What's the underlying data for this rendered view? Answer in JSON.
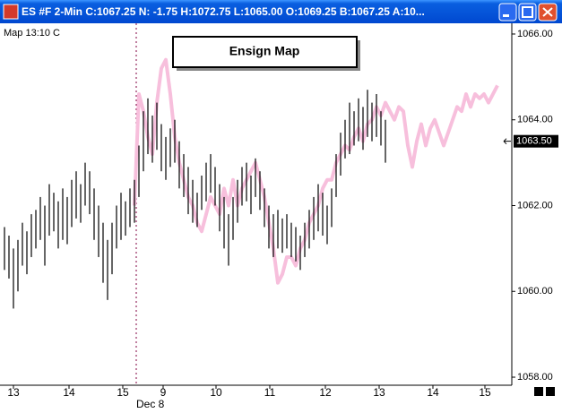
{
  "window": {
    "title": "ES #F 2-Min C:1067.25 N: -1.75 H:1072.75 L:1065.00 O:1069.25 B:1067.25 A:10..."
  },
  "chart_data": {
    "type": "ohlc",
    "caption": "Map 13:10 C",
    "annotation": "Ensign Map",
    "color": "#000000",
    "high": [
      1061.5,
      1061.3,
      1061,
      1061.2,
      1061.6,
      1061.4,
      1061.8,
      1061.9,
      1062.2,
      1062,
      1062.5,
      1062.3,
      1062.1,
      1062.4,
      1062.2,
      1062.6,
      1062.8,
      1062.5,
      1063,
      1062.8,
      1062.4,
      1062,
      1061.6,
      1061.2,
      1061.6,
      1062,
      1062.3,
      1062.1,
      1062.4,
      1062.6,
      1063.4,
      1064.2,
      1064.5,
      1064.1,
      1064.4,
      1063.9,
      1063.6,
      1063.8,
      1064,
      1063.5,
      1063.2,
      1062.9,
      1062.6,
      1062.3,
      1062.7,
      1063,
      1063.2,
      1062.9,
      1062.5,
      1062.2,
      1061.8,
      1062.2,
      1062.6,
      1062.9,
      1063,
      1062.7,
      1063.1,
      1062.8,
      1062.4,
      1062,
      1061.8,
      1061.9,
      1061.7,
      1061.8,
      1061.6,
      1061.5,
      1061.3,
      1061.6,
      1061.9,
      1062.2,
      1062.5,
      1062.3,
      1062,
      1062.4,
      1063.2,
      1063.7,
      1064,
      1064.4,
      1064.2,
      1064.5,
      1064.3,
      1064.7,
      1064.4,
      1064.6,
      1064.2,
      1064
    ],
    "low": [
      1060.5,
      1060.3,
      1059.6,
      1060,
      1060.6,
      1060.4,
      1060.8,
      1061,
      1061.2,
      1060.6,
      1061.3,
      1061.4,
      1061,
      1061.2,
      1061.1,
      1061.5,
      1061.7,
      1061.6,
      1062,
      1061.8,
      1061.2,
      1060.8,
      1060.2,
      1059.8,
      1060.4,
      1061,
      1061.2,
      1061.3,
      1061.5,
      1061.6,
      1062.2,
      1062.8,
      1063.2,
      1063,
      1063.3,
      1062.8,
      1062.6,
      1062.9,
      1063,
      1062.4,
      1062.2,
      1061.8,
      1061.6,
      1061.5,
      1061.9,
      1062.1,
      1062.3,
      1062,
      1061.4,
      1061,
      1060.6,
      1061.2,
      1061.6,
      1062,
      1062.1,
      1061.8,
      1062.2,
      1061.9,
      1061.5,
      1061,
      1060.8,
      1061,
      1060.9,
      1061,
      1060.8,
      1060.7,
      1060.5,
      1060.8,
      1061,
      1061.2,
      1061.4,
      1061.3,
      1061.1,
      1061.5,
      1062.2,
      1062.7,
      1063.1,
      1063.2,
      1063.4,
      1063.5,
      1063.3,
      1063.6,
      1063.5,
      1063.6,
      1063.4,
      1063
    ],
    "series": [
      {
        "color": "#f7bfdc",
        "x": [
          29,
          30,
          31,
          32,
          33,
          34,
          35,
          36,
          37,
          38,
          39,
          40,
          41,
          42,
          43,
          44,
          45,
          46,
          47,
          48,
          49,
          50,
          51,
          52,
          53,
          54,
          55,
          56,
          57,
          58,
          59,
          60,
          61,
          62,
          63,
          64,
          65,
          66,
          67,
          68,
          69,
          70,
          71,
          72,
          73,
          74,
          75,
          76,
          77,
          78,
          79,
          80,
          81,
          82,
          83,
          84,
          85,
          86,
          87,
          88,
          89,
          90,
          91,
          92,
          93,
          94,
          95,
          96,
          97,
          98,
          99,
          100,
          101,
          102,
          103,
          104,
          105,
          106,
          107,
          108,
          109,
          110
        ],
        "values": [
          1062,
          1064.6,
          1064.2,
          1063.6,
          1063.2,
          1064.4,
          1065.2,
          1065.4,
          1064.6,
          1063.6,
          1063,
          1062.6,
          1062.2,
          1062,
          1061.6,
          1061.4,
          1061.8,
          1062.2,
          1062,
          1061.8,
          1062.4,
          1062,
          1062.6,
          1062,
          1062.4,
          1062.6,
          1062.8,
          1063,
          1062.6,
          1062.2,
          1061.6,
          1061,
          1060.2,
          1060.4,
          1060.8,
          1060.8,
          1060.6,
          1061,
          1061.2,
          1061.6,
          1061.8,
          1062,
          1062.4,
          1062.6,
          1062.6,
          1063,
          1063.2,
          1063.4,
          1063.3,
          1063.6,
          1063.8,
          1063.5,
          1063.9,
          1064,
          1064.3,
          1064.1,
          1064.4,
          1064.2,
          1064,
          1064.3,
          1064.2,
          1063.4,
          1062.9,
          1063.5,
          1063.9,
          1063.4,
          1063.8,
          1064,
          1063.7,
          1063.4,
          1063.7,
          1064,
          1064.3,
          1064.2,
          1064.6,
          1064.3,
          1064.6,
          1064.5,
          1064.6,
          1064.4,
          1064.6,
          1064.8
        ]
      }
    ],
    "xlim": [
      -1,
      113
    ],
    "xticks": [
      {
        "value": 2,
        "label": "13"
      },
      {
        "value": 14.4,
        "label": "14"
      },
      {
        "value": 26.4,
        "label": "15"
      },
      {
        "value": 35.4,
        "label": "9"
      },
      {
        "value": 47.2,
        "label": "10"
      },
      {
        "value": 59.2,
        "label": "11"
      },
      {
        "value": 71.6,
        "label": "12"
      },
      {
        "value": 83.6,
        "label": "13"
      },
      {
        "value": 95.6,
        "label": "14"
      },
      {
        "value": 107.2,
        "label": "15"
      }
    ],
    "session_break": {
      "value": 29.4,
      "label": "Dec 8"
    },
    "ylim": [
      1057.8125,
      1066.25
    ],
    "yticks": [
      {
        "value": 1066,
        "label": "1066.00"
      },
      {
        "value": 1064,
        "label": "1064.00"
      },
      {
        "value": 1062,
        "label": "1062.00"
      },
      {
        "value": 1060,
        "label": "1060.00"
      },
      {
        "value": 1058,
        "label": "1058.00"
      }
    ],
    "last_price": {
      "value": 1063.5,
      "label": "1063.50"
    }
  }
}
